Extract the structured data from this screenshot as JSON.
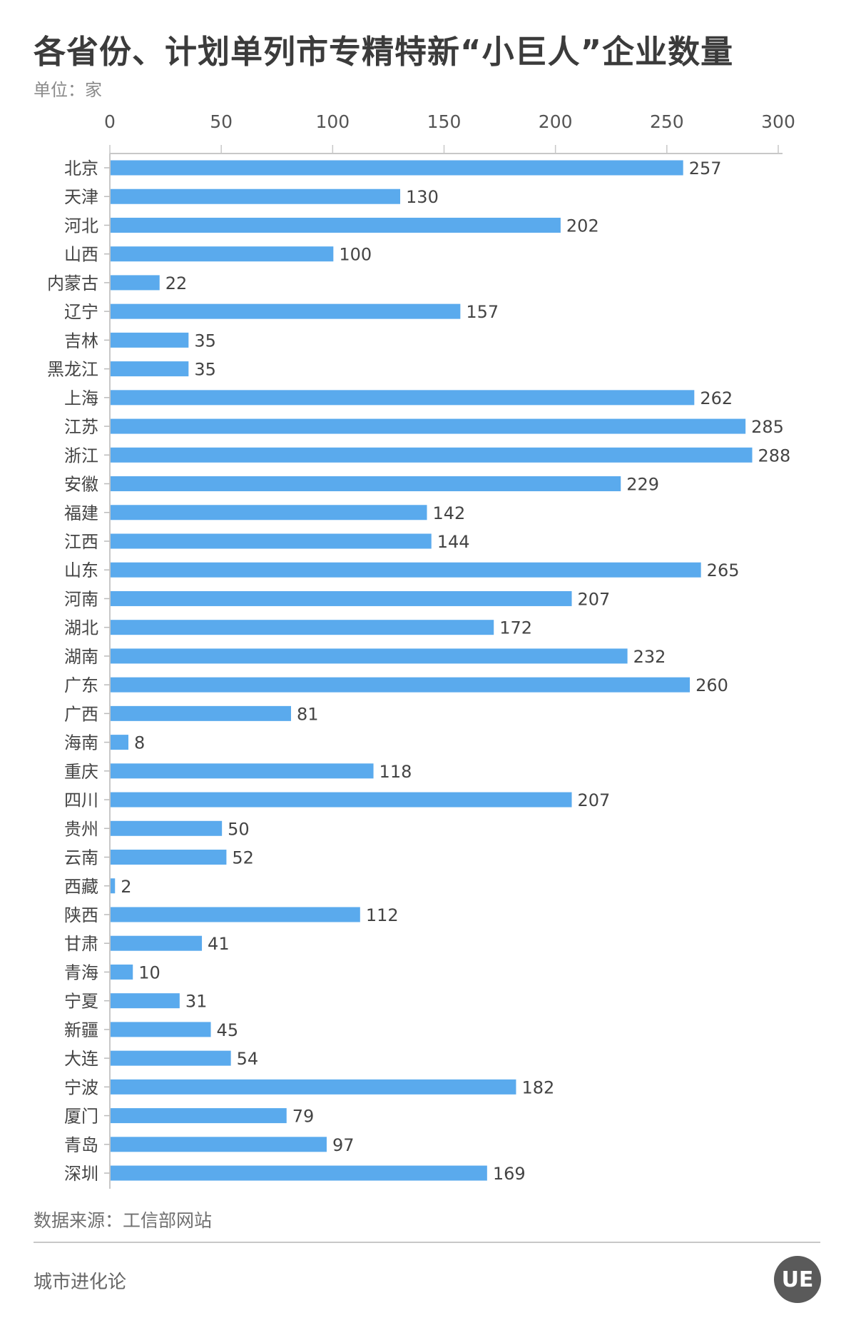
{
  "chart_data": {
    "type": "bar",
    "orientation": "horizontal",
    "title": "各省份、计划单列市专精特新“小巨人”企业数量",
    "subtitle": "单位：家",
    "xlim": [
      0,
      300
    ],
    "xticks": [
      0,
      50,
      100,
      150,
      200,
      250,
      300
    ],
    "grid": false,
    "bar_color": "#5aaaed",
    "categories": [
      "北京",
      "天津",
      "河北",
      "山西",
      "内蒙古",
      "辽宁",
      "吉林",
      "黑龙江",
      "上海",
      "江苏",
      "浙江",
      "安徽",
      "福建",
      "江西",
      "山东",
      "河南",
      "湖北",
      "湖南",
      "广东",
      "广西",
      "海南",
      "重庆",
      "四川",
      "贵州",
      "云南",
      "西藏",
      "陕西",
      "甘肃",
      "青海",
      "宁夏",
      "新疆",
      "大连",
      "宁波",
      "厦门",
      "青岛",
      "深圳"
    ],
    "values": [
      257,
      130,
      202,
      100,
      22,
      157,
      35,
      35,
      262,
      285,
      288,
      229,
      142,
      144,
      265,
      207,
      172,
      232,
      260,
      81,
      8,
      118,
      207,
      50,
      52,
      2,
      112,
      41,
      10,
      31,
      45,
      54,
      182,
      79,
      97,
      169
    ]
  },
  "footer": {
    "source": "数据来源：工信部网站",
    "brand": "城市进化论",
    "logo": "UE"
  }
}
